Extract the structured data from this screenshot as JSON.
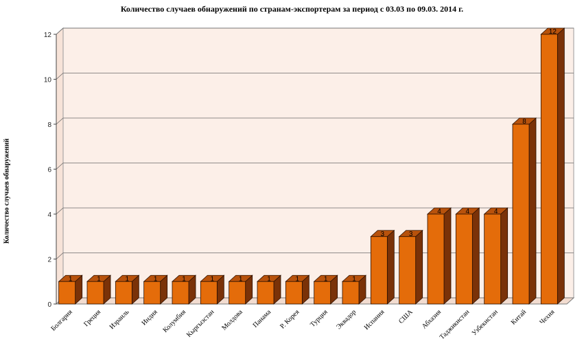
{
  "chart_data": {
    "type": "bar",
    "title": "Количество случаев обнаружений по странам-экспортерам за период с 03.03 по 09.03. 2014 г.",
    "ylabel": "Количество случаев обнаружений",
    "xlabel": "",
    "ylim": [
      0,
      12
    ],
    "yticks": [
      0,
      2,
      4,
      6,
      8,
      10,
      12
    ],
    "categories": [
      "Болгария",
      "Греция",
      "Израиль",
      "Индия",
      "Колумбия",
      "Кыргызстан",
      "Молдова",
      "Панама",
      "Р. Корея",
      "Турция",
      "Эквадор",
      "Испания",
      "США",
      "Абхазия",
      "Таджикистан",
      "Узбекистан",
      "Китай",
      "Чехия"
    ],
    "values": [
      1,
      1,
      1,
      1,
      1,
      1,
      1,
      1,
      1,
      1,
      1,
      3,
      3,
      4,
      4,
      4,
      8,
      12
    ],
    "grid": true,
    "style": "3d-bar",
    "colors": {
      "bar_front": "#e46c0a",
      "bar_side": "#7a3208",
      "bar_top": "#b8520c",
      "bar_outline": "#2b1000",
      "wall": "#fcefe8",
      "floor": "#f2dcd0",
      "grid": "#6b6b6b"
    }
  }
}
